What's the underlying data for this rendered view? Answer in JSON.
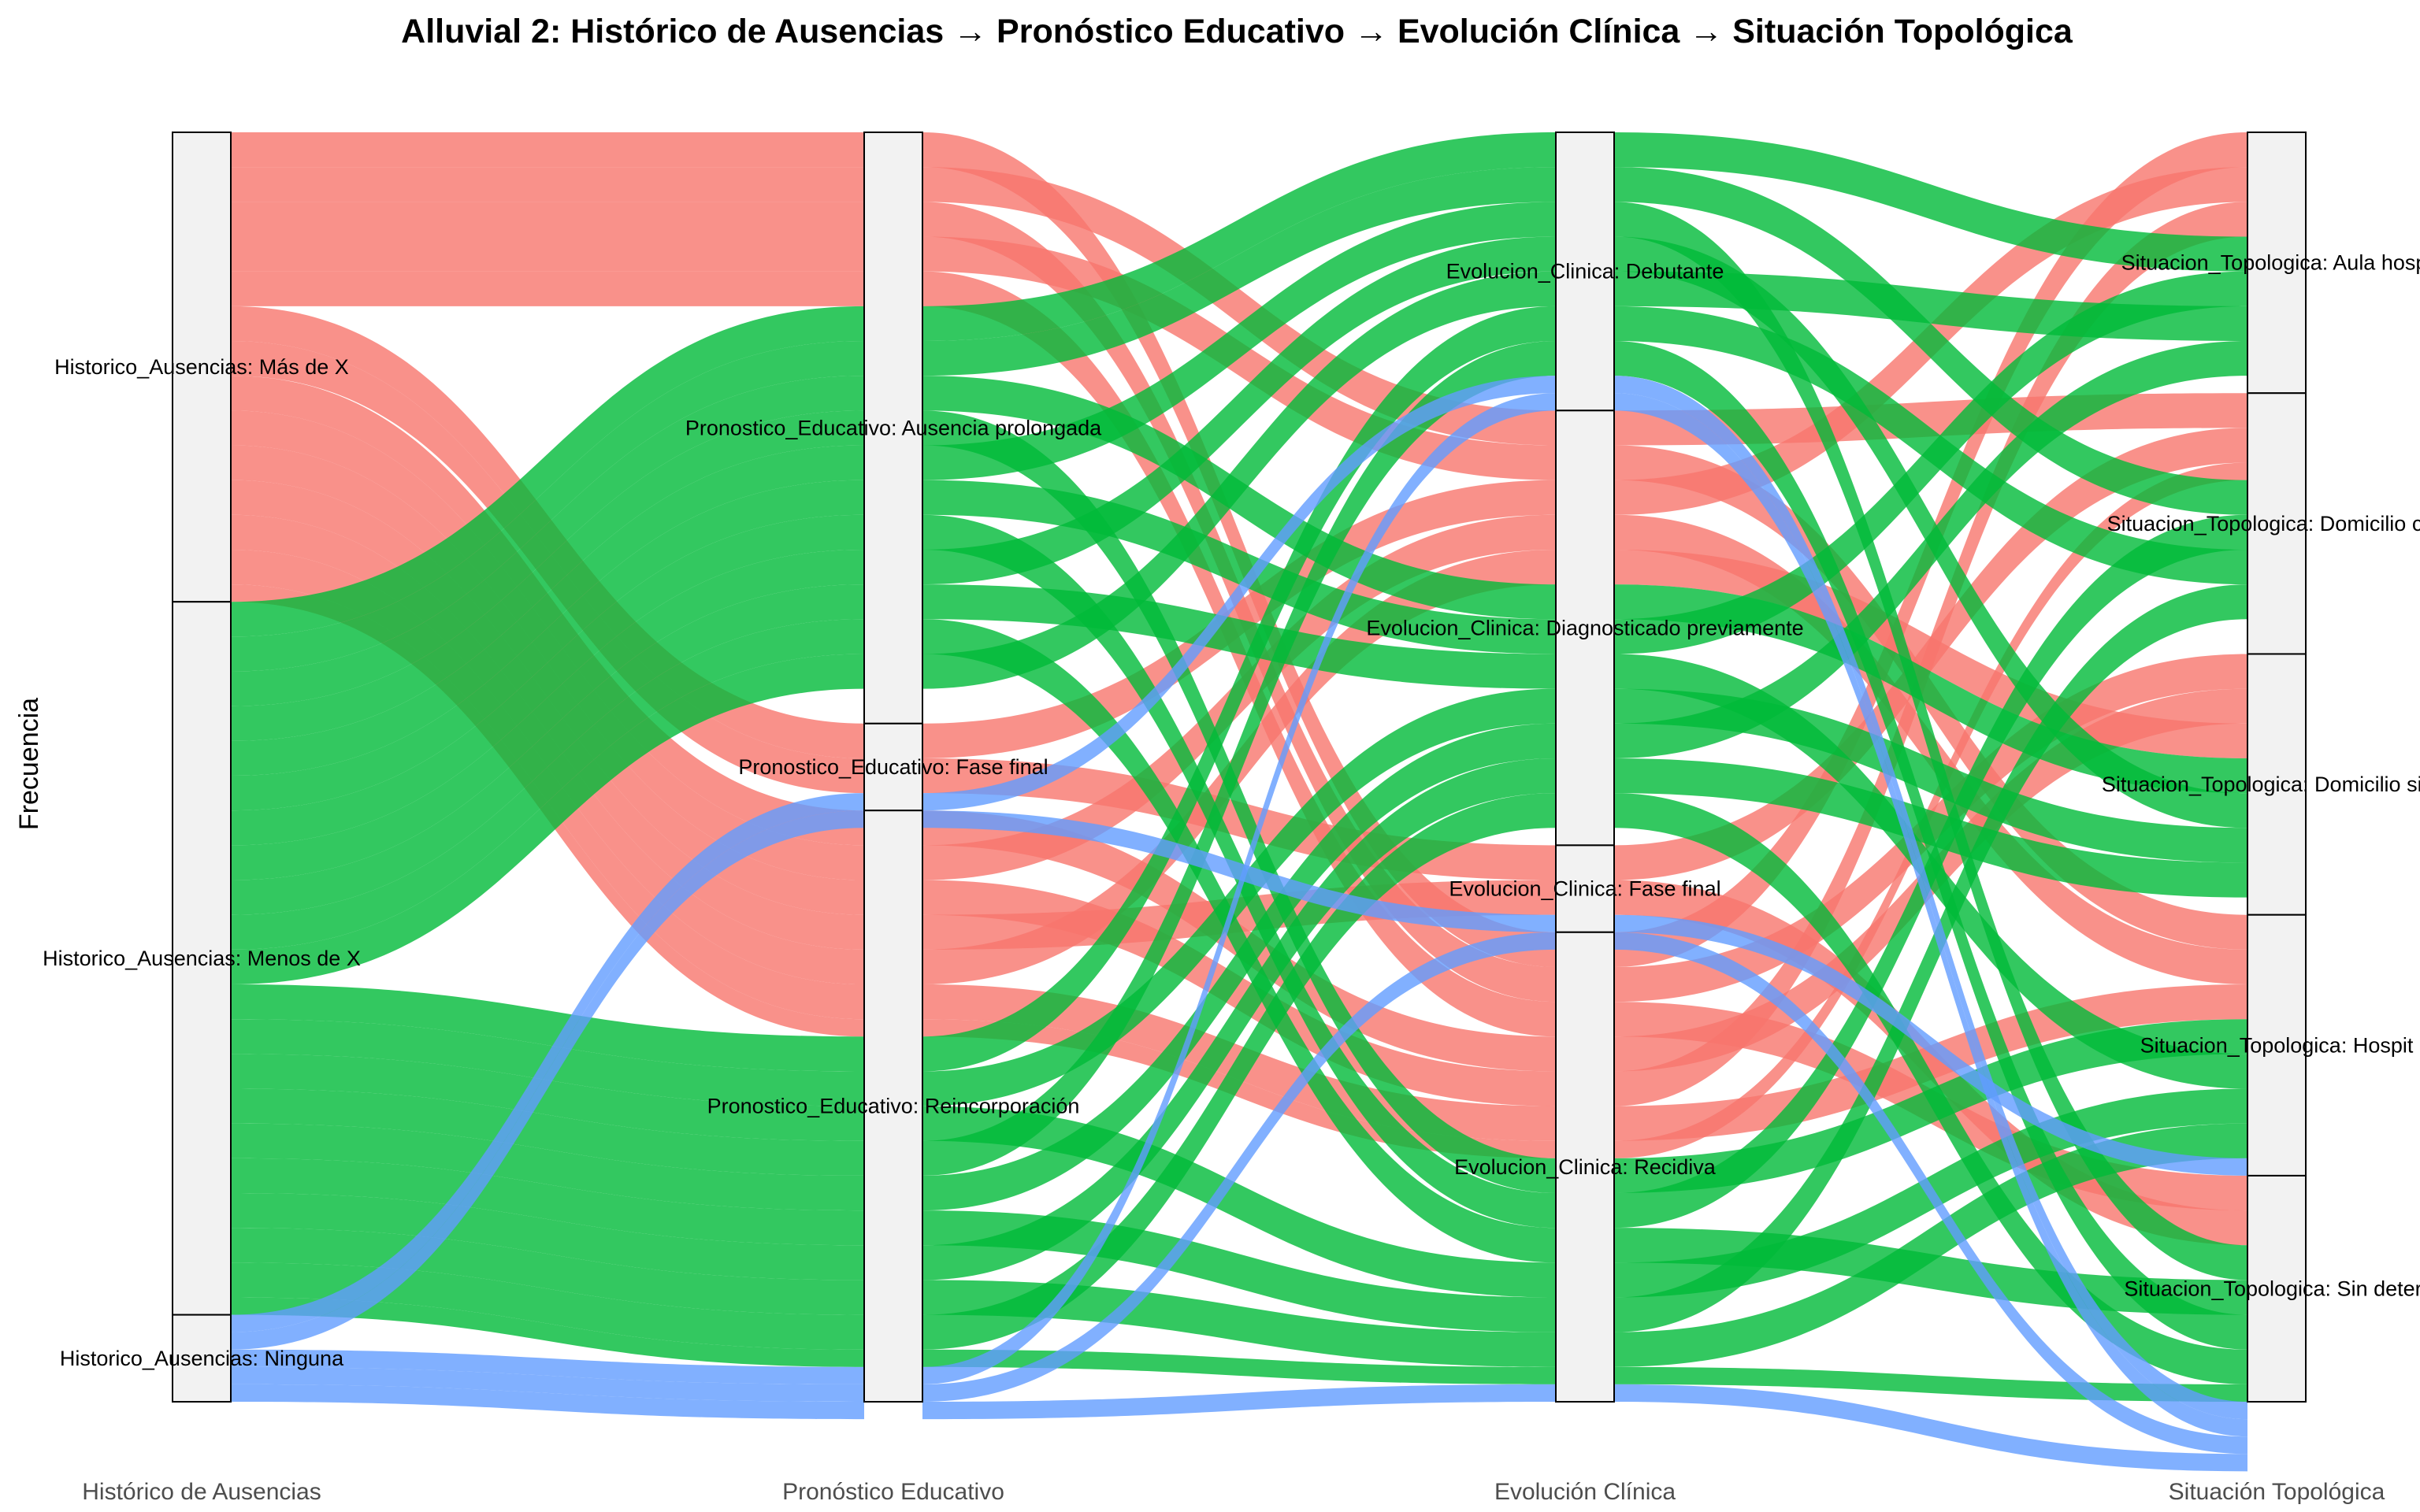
{
  "chart_data": {
    "type": "alluvial",
    "title": "Alluvial 2: Histórico de Ausencias → Pronóstico Educativo → Evolución Clínica → Situación Topológica",
    "ylabel": "Frecuencia",
    "axes": [
      "Histórico de Ausencias",
      "Pronóstico Educativo",
      "Evolución Clínica",
      "Situación Topológica"
    ],
    "fill_by": "Histórico de Ausencias",
    "colors": {
      "Más de X": "#F8766D",
      "Menos de X": "#00BA38",
      "Ninguna": "#619CFF"
    },
    "strata": [
      [
        {
          "name": "Más de X",
          "label": "Historico_Ausencias: Más de X",
          "value": 27
        },
        {
          "name": "Menos de X",
          "label": "Historico_Ausencias: Menos de X",
          "value": 41
        },
        {
          "name": "Ninguna",
          "label": "Historico_Ausencias: Ninguna",
          "value": 5
        }
      ],
      [
        {
          "name": "Ausencia prolongada",
          "label": "Pronostico_Educativo: Ausencia prolongada",
          "value": 34
        },
        {
          "name": "Fase final",
          "label": "Pronostico_Educativo: Fase final",
          "value": 5
        },
        {
          "name": "Reincorporación",
          "label": "Pronostico_Educativo: Reincorporación",
          "value": 34
        }
      ],
      [
        {
          "name": "Debutante",
          "label": "Evolucion_Clinica: Debutante",
          "value": 16
        },
        {
          "name": "Diagnosticado previamente",
          "label": "Evolucion_Clinica: Diagnosticado previamente",
          "value": 25
        },
        {
          "name": "Fase final",
          "label": "Evolucion_Clinica: Fase final",
          "value": 5
        },
        {
          "name": "Recidiva",
          "label": "Evolucion_Clinica: Recidiva",
          "value": 27
        }
      ],
      [
        {
          "name": "Aula hospitalaria",
          "label": "Situacion_Topologica: Aula hospi",
          "value": 15
        },
        {
          "name": "Domicilio con apoyo",
          "label": "Situacion_Topologica: Domicilio con",
          "value": 15
        },
        {
          "name": "Domicilio sin apoyo",
          "label": "Situacion_Topologica: Domicilio sin a",
          "value": 15
        },
        {
          "name": "Hospital",
          "label": "Situacion_Topologica: Hospit",
          "value": 15
        },
        {
          "name": "Sin determinar",
          "label": "Situacion_Topologica: Sin deterr",
          "value": 13
        }
      ]
    ],
    "flows": [
      {
        "group": "Más de X",
        "path": [
          "Ausencia prolongada",
          "Recidiva",
          "Aula hospitalaria"
        ],
        "value": 2
      },
      {
        "group": "Más de X",
        "path": [
          "Ausencia prolongada",
          "Diagnosticado previamente",
          "Domicilio con apoyo"
        ],
        "value": 2
      },
      {
        "group": "Más de X",
        "path": [
          "Ausencia prolongada",
          "Recidiva",
          "Domicilio sin apoyo"
        ],
        "value": 2
      },
      {
        "group": "Más de X",
        "path": [
          "Ausencia prolongada",
          "Diagnosticado previamente",
          "Hospital"
        ],
        "value": 2
      },
      {
        "group": "Más de X",
        "path": [
          "Ausencia prolongada",
          "Recidiva",
          "Sin determinar"
        ],
        "value": 2
      },
      {
        "group": "Más de X",
        "path": [
          "Fase final",
          "Diagnosticado previamente",
          "Aula hospitalaria"
        ],
        "value": 2
      },
      {
        "group": "Más de X",
        "path": [
          "Fase final",
          "Fase final",
          "Domicilio con apoyo"
        ],
        "value": 2
      },
      {
        "group": "Más de X",
        "path": [
          "Reincorporación",
          "Recidiva",
          "Domicilio sin apoyo"
        ],
        "value": 2
      },
      {
        "group": "Más de X",
        "path": [
          "Reincorporación",
          "Diagnosticado previamente",
          "Hospital"
        ],
        "value": 2
      },
      {
        "group": "Más de X",
        "path": [
          "Reincorporación",
          "Recidiva",
          "Aula hospitalaria"
        ],
        "value": 2
      },
      {
        "group": "Más de X",
        "path": [
          "Reincorporación",
          "Fase final",
          "Sin determinar"
        ],
        "value": 2
      },
      {
        "group": "Más de X",
        "path": [
          "Reincorporación",
          "Diagnosticado previamente",
          "Domicilio sin apoyo"
        ],
        "value": 2
      },
      {
        "group": "Más de X",
        "path": [
          "Reincorporación",
          "Recidiva",
          "Hospital"
        ],
        "value": 2
      },
      {
        "group": "Más de X",
        "path": [
          "Reincorporación",
          "Recidiva",
          "Domicilio con apoyo"
        ],
        "value": 1
      },
      {
        "group": "Menos de X",
        "path": [
          "Ausencia prolongada",
          "Debutante",
          "Aula hospitalaria"
        ],
        "value": 2
      },
      {
        "group": "Menos de X",
        "path": [
          "Ausencia prolongada",
          "Debutante",
          "Domicilio con apoyo"
        ],
        "value": 2
      },
      {
        "group": "Menos de X",
        "path": [
          "Ausencia prolongada",
          "Diagnosticado previamente",
          "Domicilio sin apoyo"
        ],
        "value": 2
      },
      {
        "group": "Menos de X",
        "path": [
          "Ausencia prolongada",
          "Recidiva",
          "Hospital"
        ],
        "value": 2
      },
      {
        "group": "Menos de X",
        "path": [
          "Ausencia prolongada",
          "Debutante",
          "Sin determinar"
        ],
        "value": 2
      },
      {
        "group": "Menos de X",
        "path": [
          "Ausencia prolongada",
          "Diagnosticado previamente",
          "Aula hospitalaria"
        ],
        "value": 2
      },
      {
        "group": "Menos de X",
        "path": [
          "Ausencia prolongada",
          "Recidiva",
          "Domicilio con apoyo"
        ],
        "value": 2
      },
      {
        "group": "Menos de X",
        "path": [
          "Ausencia prolongada",
          "Debutante",
          "Domicilio sin apoyo"
        ],
        "value": 2
      },
      {
        "group": "Menos de X",
        "path": [
          "Ausencia prolongada",
          "Diagnosticado previamente",
          "Hospital"
        ],
        "value": 2
      },
      {
        "group": "Menos de X",
        "path": [
          "Ausencia prolongada",
          "Recidiva",
          "Sin determinar"
        ],
        "value": 2
      },
      {
        "group": "Menos de X",
        "path": [
          "Ausencia prolongada",
          "Debutante",
          "Aula hospitalaria"
        ],
        "value": 2
      },
      {
        "group": "Menos de X",
        "path": [
          "Reincorporación",
          "Debutante",
          "Domicilio con apoyo"
        ],
        "value": 2
      },
      {
        "group": "Menos de X",
        "path": [
          "Reincorporación",
          "Diagnosticado previamente",
          "Domicilio sin apoyo"
        ],
        "value": 2
      },
      {
        "group": "Menos de X",
        "path": [
          "Reincorporación",
          "Recidiva",
          "Hospital"
        ],
        "value": 2
      },
      {
        "group": "Menos de X",
        "path": [
          "Reincorporación",
          "Debutante",
          "Sin determinar"
        ],
        "value": 2
      },
      {
        "group": "Menos de X",
        "path": [
          "Reincorporación",
          "Diagnosticado previamente",
          "Aula hospitalaria"
        ],
        "value": 2
      },
      {
        "group": "Menos de X",
        "path": [
          "Reincorporación",
          "Recidiva",
          "Domicilio con apoyo"
        ],
        "value": 2
      },
      {
        "group": "Menos de X",
        "path": [
          "Reincorporación",
          "Diagnosticado previamente",
          "Domicilio sin apoyo"
        ],
        "value": 2
      },
      {
        "group": "Menos de X",
        "path": [
          "Reincorporación",
          "Recidiva",
          "Hospital"
        ],
        "value": 2
      },
      {
        "group": "Menos de X",
        "path": [
          "Reincorporación",
          "Diagnosticado previamente",
          "Sin determinar"
        ],
        "value": 2
      },
      {
        "group": "Menos de X",
        "path": [
          "Reincorporación",
          "Recidiva",
          "Sin determinar"
        ],
        "value": 1
      },
      {
        "group": "Ninguna",
        "path": [
          "Fase final",
          "Debutante",
          "Sin determinar"
        ],
        "value": 1
      },
      {
        "group": "Ninguna",
        "path": [
          "Fase final",
          "Fase final",
          "Hospital"
        ],
        "value": 1
      },
      {
        "group": "Ninguna",
        "path": [
          "Reincorporación",
          "Debutante",
          "Sin determinar"
        ],
        "value": 1
      },
      {
        "group": "Ninguna",
        "path": [
          "Reincorporación",
          "Fase final",
          "Sin determinar"
        ],
        "value": 1
      },
      {
        "group": "Ninguna",
        "path": [
          "Reincorporación",
          "Recidiva",
          "Sin determinar"
        ],
        "value": 1
      }
    ]
  }
}
